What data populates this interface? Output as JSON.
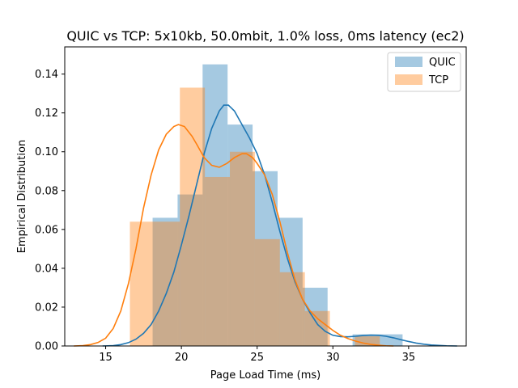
{
  "chart_data": {
    "type": "histogram",
    "title": "QUIC vs TCP: 5x10kb, 50.0mbit, 1.0% loss, 0ms latency (ec2)",
    "xlabel": "Page Load Time (ms)",
    "ylabel": "Empirical Distribution",
    "xlim": [
      12.3,
      38.8
    ],
    "ylim": [
      0,
      0.154
    ],
    "xticks": [
      15,
      20,
      25,
      30,
      35
    ],
    "yticks": [
      0.0,
      0.02,
      0.04,
      0.06,
      0.08,
      0.1,
      0.12,
      0.14
    ],
    "ytick_labels": [
      "0.00",
      "0.02",
      "0.04",
      "0.06",
      "0.08",
      "0.10",
      "0.12",
      "0.14"
    ],
    "legend_position": "top-right",
    "series": [
      {
        "name": "QUIC",
        "color": "#1f77b4",
        "bins": [
          {
            "x0": 18.1,
            "x1": 19.75,
            "density": 0.066
          },
          {
            "x0": 19.75,
            "x1": 21.4,
            "density": 0.078
          },
          {
            "x0": 21.4,
            "x1": 23.05,
            "density": 0.145
          },
          {
            "x0": 23.05,
            "x1": 24.7,
            "density": 0.114
          },
          {
            "x0": 24.7,
            "x1": 26.35,
            "density": 0.09
          },
          {
            "x0": 26.35,
            "x1": 28.0,
            "density": 0.066
          },
          {
            "x0": 28.0,
            "x1": 29.65,
            "density": 0.03
          },
          {
            "x0": 29.65,
            "x1": 31.3,
            "density": 0.0
          },
          {
            "x0": 31.3,
            "x1": 32.95,
            "density": 0.006
          },
          {
            "x0": 32.95,
            "x1": 34.6,
            "density": 0.006
          }
        ],
        "kde": [
          [
            14.8,
            0.0
          ],
          [
            15.5,
            0.0002
          ],
          [
            16.0,
            0.0007
          ],
          [
            16.5,
            0.0017
          ],
          [
            17.0,
            0.0035
          ],
          [
            17.5,
            0.0065
          ],
          [
            18.0,
            0.011
          ],
          [
            18.5,
            0.018
          ],
          [
            19.0,
            0.027
          ],
          [
            19.5,
            0.038
          ],
          [
            20.0,
            0.052
          ],
          [
            20.5,
            0.067
          ],
          [
            21.0,
            0.083
          ],
          [
            21.5,
            0.099
          ],
          [
            22.0,
            0.112
          ],
          [
            22.5,
            0.121
          ],
          [
            22.8,
            0.124
          ],
          [
            23.1,
            0.124
          ],
          [
            23.5,
            0.121
          ],
          [
            24.0,
            0.114
          ],
          [
            24.5,
            0.107
          ],
          [
            25.0,
            0.099
          ],
          [
            25.5,
            0.088
          ],
          [
            26.0,
            0.074
          ],
          [
            26.5,
            0.059
          ],
          [
            27.0,
            0.045
          ],
          [
            27.5,
            0.033
          ],
          [
            28.0,
            0.024
          ],
          [
            28.5,
            0.017
          ],
          [
            29.0,
            0.011
          ],
          [
            29.5,
            0.0075
          ],
          [
            30.0,
            0.0055
          ],
          [
            30.5,
            0.0048
          ],
          [
            31.0,
            0.0047
          ],
          [
            31.5,
            0.005
          ],
          [
            32.0,
            0.0054
          ],
          [
            32.5,
            0.0056
          ],
          [
            33.0,
            0.0055
          ],
          [
            33.5,
            0.005
          ],
          [
            34.0,
            0.0042
          ],
          [
            34.5,
            0.0032
          ],
          [
            35.0,
            0.0023
          ],
          [
            35.5,
            0.0015
          ],
          [
            36.0,
            0.0009
          ],
          [
            36.5,
            0.0005
          ],
          [
            37.0,
            0.0003
          ],
          [
            37.5,
            0.0001
          ],
          [
            38.2,
            0.0
          ]
        ]
      },
      {
        "name": "TCP",
        "color": "#ff7f0e",
        "bins": [
          {
            "x0": 16.6,
            "x1": 18.25,
            "density": 0.064
          },
          {
            "x0": 18.25,
            "x1": 19.9,
            "density": 0.064
          },
          {
            "x0": 19.9,
            "x1": 21.55,
            "density": 0.133
          },
          {
            "x0": 21.55,
            "x1": 23.2,
            "density": 0.087
          },
          {
            "x0": 23.2,
            "x1": 24.85,
            "density": 0.1
          },
          {
            "x0": 24.85,
            "x1": 26.5,
            "density": 0.055
          },
          {
            "x0": 26.5,
            "x1": 28.15,
            "density": 0.038
          },
          {
            "x0": 28.15,
            "x1": 29.8,
            "density": 0.018
          },
          {
            "x0": 29.8,
            "x1": 31.45,
            "density": 0.0
          },
          {
            "x0": 31.45,
            "x1": 33.1,
            "density": 0.005
          }
        ],
        "kde": [
          [
            12.9,
            0.0
          ],
          [
            13.5,
            0.0002
          ],
          [
            14.0,
            0.0007
          ],
          [
            14.5,
            0.0018
          ],
          [
            15.0,
            0.004
          ],
          [
            15.5,
            0.009
          ],
          [
            16.0,
            0.018
          ],
          [
            16.5,
            0.032
          ],
          [
            17.0,
            0.05
          ],
          [
            17.5,
            0.071
          ],
          [
            18.0,
            0.088
          ],
          [
            18.5,
            0.101
          ],
          [
            19.0,
            0.109
          ],
          [
            19.5,
            0.113
          ],
          [
            19.8,
            0.114
          ],
          [
            20.2,
            0.113
          ],
          [
            20.7,
            0.108
          ],
          [
            21.0,
            0.104
          ],
          [
            21.5,
            0.097
          ],
          [
            22.0,
            0.093
          ],
          [
            22.5,
            0.092
          ],
          [
            23.0,
            0.094
          ],
          [
            23.5,
            0.097
          ],
          [
            24.0,
            0.099
          ],
          [
            24.3,
            0.099
          ],
          [
            24.7,
            0.097
          ],
          [
            25.0,
            0.094
          ],
          [
            25.5,
            0.088
          ],
          [
            26.0,
            0.078
          ],
          [
            26.5,
            0.064
          ],
          [
            27.0,
            0.048
          ],
          [
            27.5,
            0.034
          ],
          [
            28.0,
            0.024
          ],
          [
            28.5,
            0.018
          ],
          [
            29.0,
            0.014
          ],
          [
            29.5,
            0.011
          ],
          [
            30.0,
            0.008
          ],
          [
            30.5,
            0.0055
          ],
          [
            31.0,
            0.0038
          ],
          [
            31.5,
            0.0025
          ],
          [
            32.0,
            0.0015
          ],
          [
            32.5,
            0.0008
          ],
          [
            33.0,
            0.0004
          ],
          [
            33.5,
            0.0001
          ],
          [
            34.0,
            0.0
          ]
        ]
      }
    ]
  }
}
